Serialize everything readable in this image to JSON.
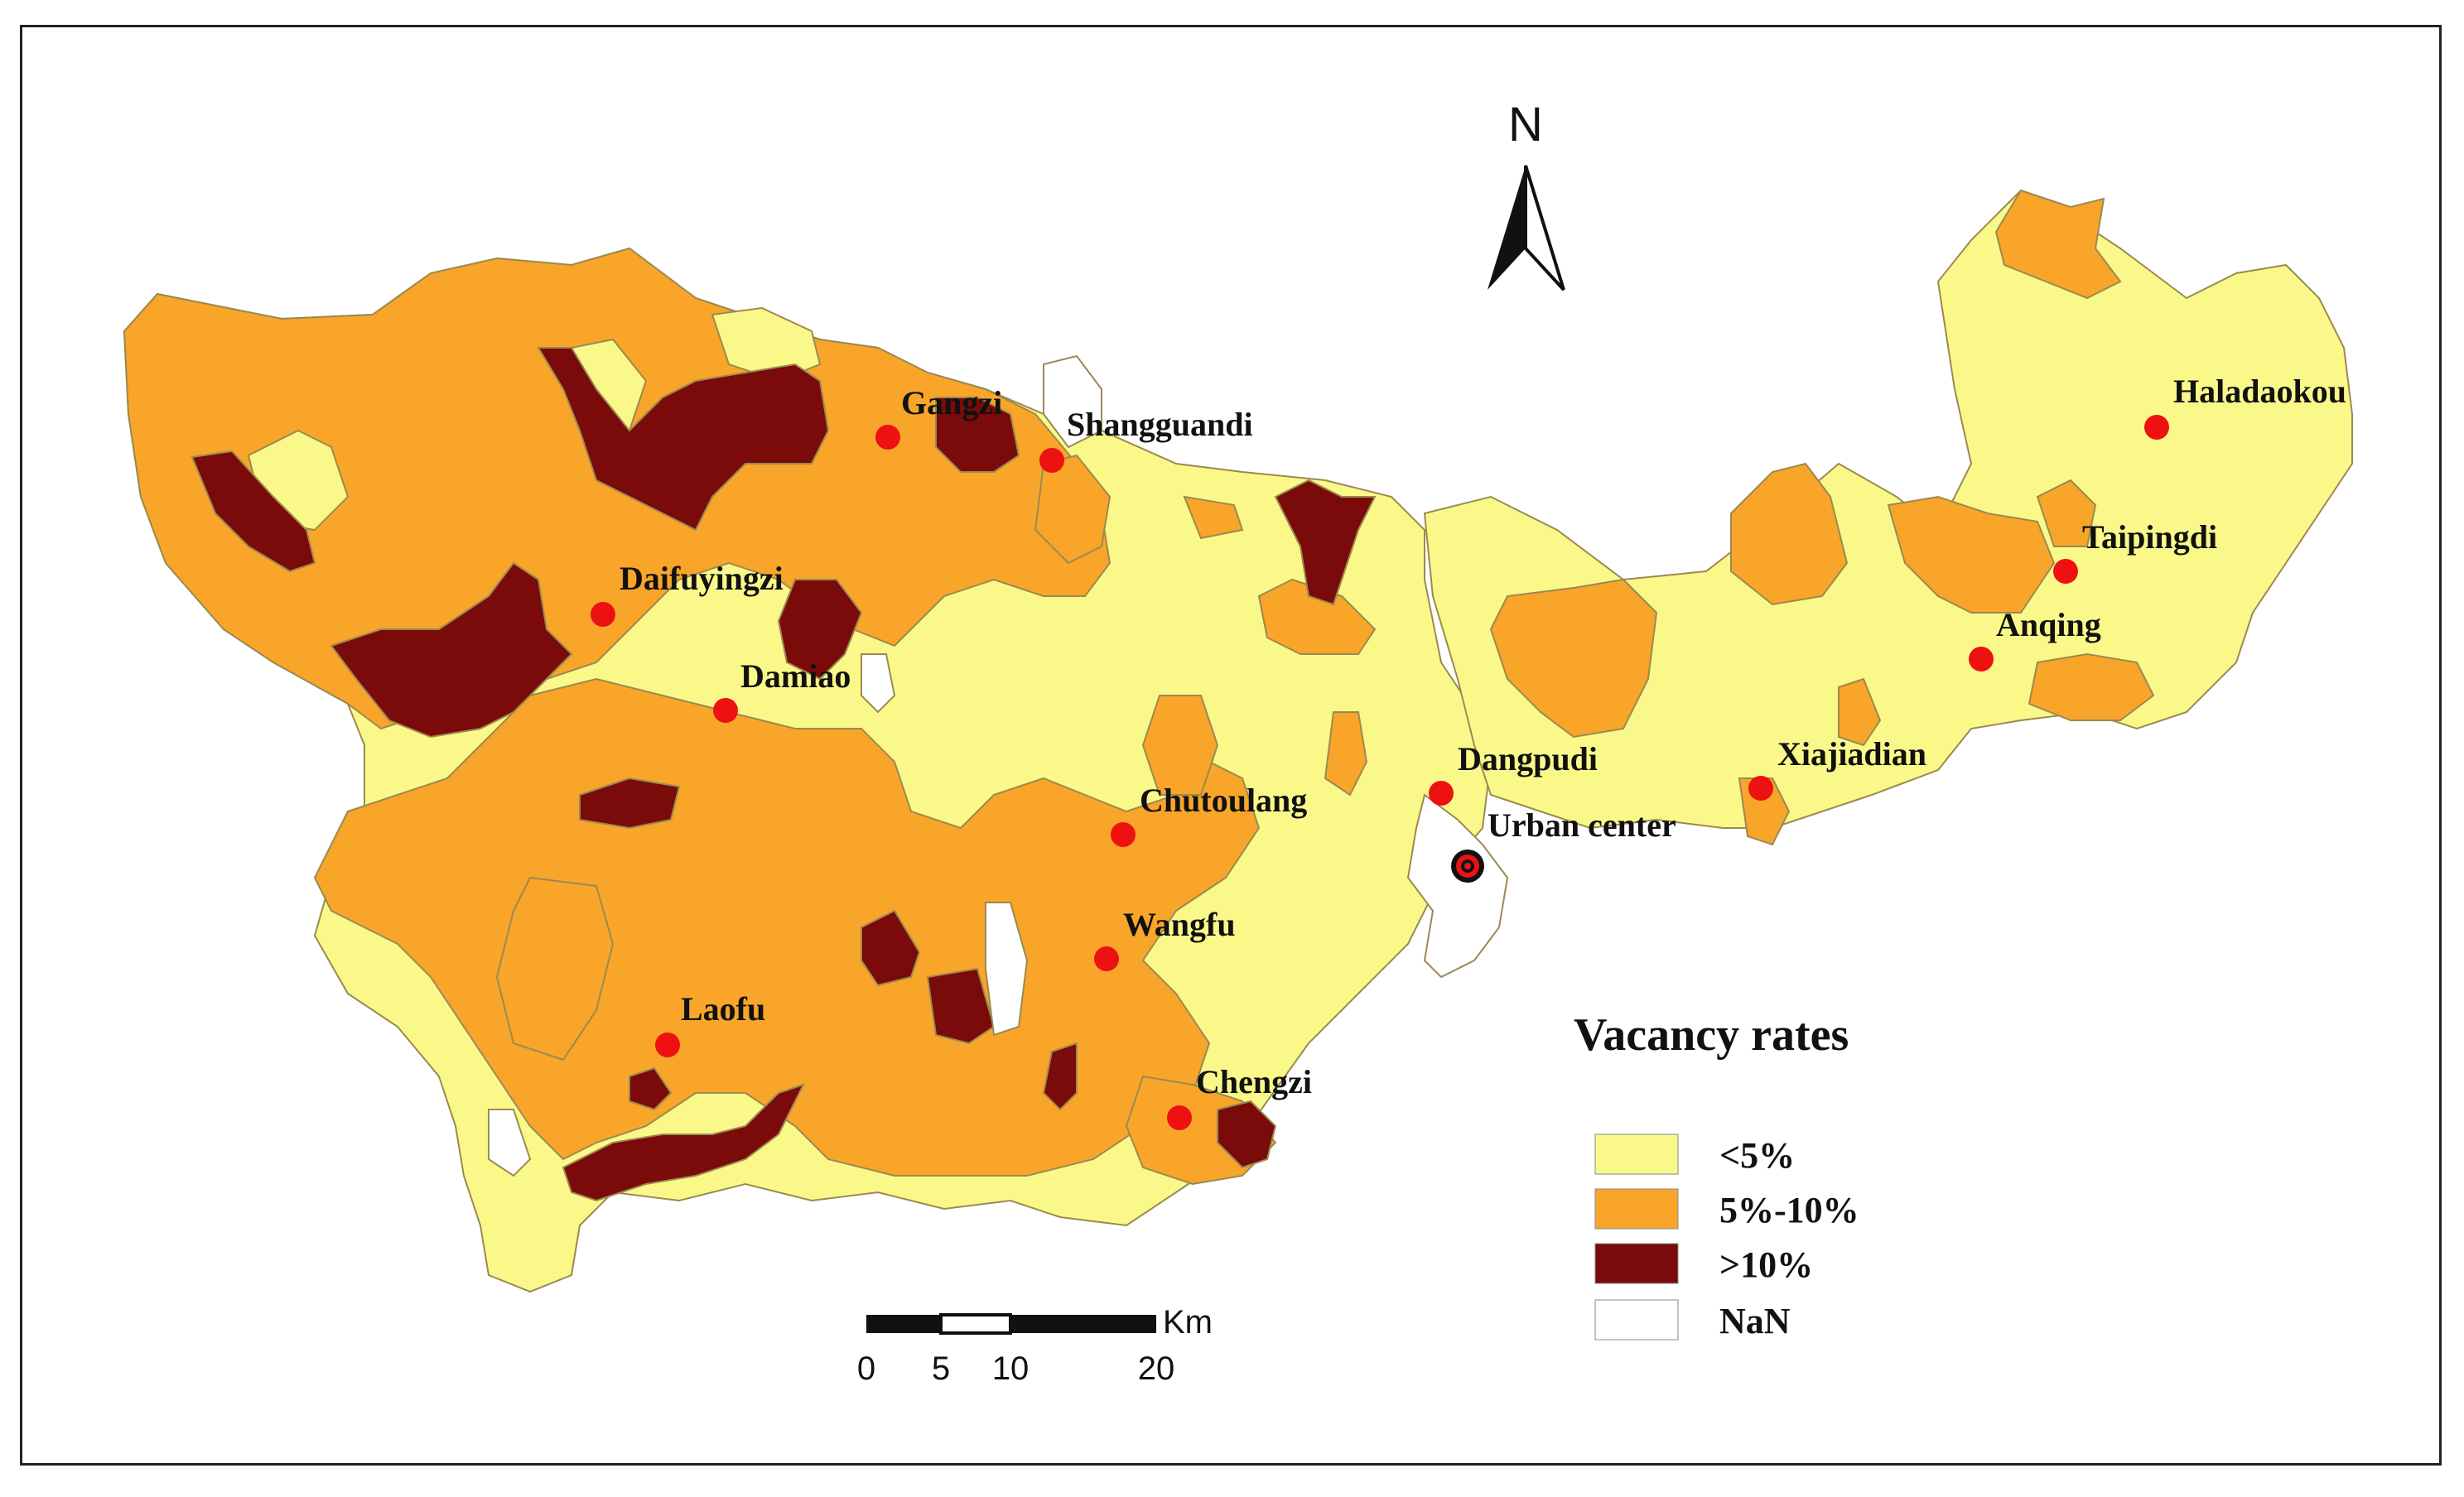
{
  "colors": {
    "low": "#fbf88a",
    "mid": "#f8a52a",
    "high": "#7b0a0a",
    "nan": "#ffffff",
    "border": "#9a8a50",
    "point": "#ee1111"
  },
  "north_arrow": {
    "label": "N"
  },
  "places": [
    {
      "name": "Gangzi"
    },
    {
      "name": "Shangguandi"
    },
    {
      "name": "Daifuyingzi"
    },
    {
      "name": "Damiao"
    },
    {
      "name": "Chutoulang"
    },
    {
      "name": "Dangpudi"
    },
    {
      "name": "Urban center"
    },
    {
      "name": "Wangfu"
    },
    {
      "name": "Laofu"
    },
    {
      "name": "Chengzi"
    },
    {
      "name": "Haladaokou"
    },
    {
      "name": "Taipingdi"
    },
    {
      "name": "Anqing"
    },
    {
      "name": "Xiajiadian"
    }
  ],
  "legend": {
    "title": "Vacancy rates",
    "items": [
      {
        "label": "<5%",
        "color": "#fbf88a"
      },
      {
        "label": "5%-10%",
        "color": "#f8a52a"
      },
      {
        "label": ">10%",
        "color": "#7b0a0a"
      },
      {
        "label": "NaN",
        "color": "#ffffff"
      }
    ]
  },
  "scale_bar": {
    "unit": "Km",
    "ticks": [
      "0",
      "5",
      "10",
      "20"
    ]
  }
}
